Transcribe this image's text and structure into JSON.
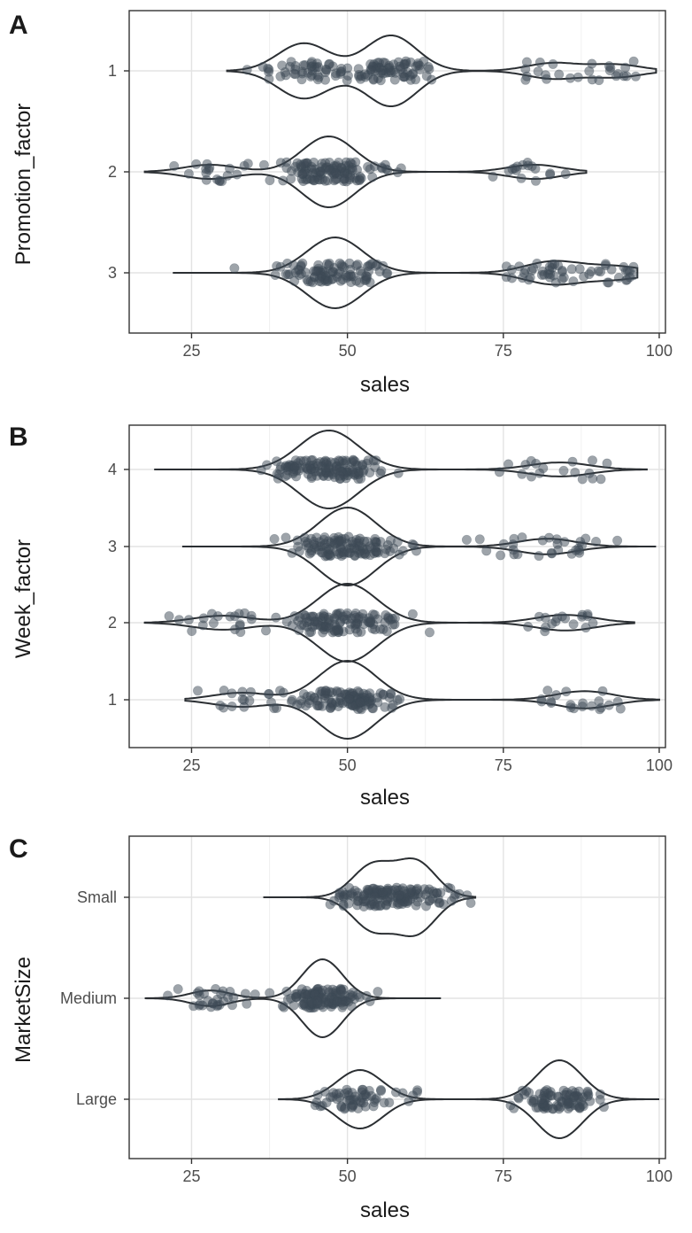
{
  "chart_data": [
    {
      "panel": "A",
      "type": "violin",
      "xlabel": "sales",
      "ylabel": "Promotion_factor",
      "xlim": [
        15,
        101
      ],
      "xticks": [
        25,
        50,
        75,
        100
      ],
      "categories": [
        "1",
        "2",
        "3"
      ],
      "grid": true,
      "point_color": "#3d4a56",
      "outline_color": "#2b2f33",
      "series": [
        {
          "category": "1",
          "min": 30.7,
          "max": 99.5,
          "modes": [
            [
              43,
              0.78
            ],
            [
              57,
              1.0
            ],
            [
              83,
              0.22
            ],
            [
              93,
              0.18
            ]
          ]
        },
        {
          "category": "2",
          "min": 17.5,
          "max": 88.3,
          "modes": [
            [
              28,
              0.2
            ],
            [
              47,
              1.0
            ],
            [
              80,
              0.2
            ]
          ]
        },
        {
          "category": "3",
          "min": 22.0,
          "max": 96.5,
          "modes": [
            [
              48,
              1.0
            ],
            [
              83,
              0.32
            ],
            [
              93,
              0.18
            ]
          ]
        }
      ]
    },
    {
      "panel": "B",
      "type": "violin",
      "xlabel": "sales",
      "ylabel": "Week_factor",
      "xlim": [
        15,
        101
      ],
      "xticks": [
        25,
        50,
        75,
        100
      ],
      "categories": [
        "1",
        "2",
        "3",
        "4"
      ],
      "grid": true,
      "point_color": "#3d4a56",
      "outline_color": "#2b2f33",
      "series": [
        {
          "category": "1",
          "min": 24.0,
          "max": 100.0,
          "modes": [
            [
              50,
              1.0
            ],
            [
              33,
              0.18
            ],
            [
              88,
              0.22
            ]
          ]
        },
        {
          "category": "2",
          "min": 17.5,
          "max": 96.0,
          "modes": [
            [
              50,
              1.0
            ],
            [
              30,
              0.18
            ],
            [
              85,
              0.2
            ]
          ]
        },
        {
          "category": "3",
          "min": 23.5,
          "max": 99.5,
          "modes": [
            [
              50,
              1.0
            ],
            [
              82,
              0.2
            ]
          ]
        },
        {
          "category": "4",
          "min": 19.0,
          "max": 98.0,
          "modes": [
            [
              47,
              1.0
            ],
            [
              84,
              0.18
            ]
          ]
        }
      ]
    },
    {
      "panel": "C",
      "type": "violin",
      "xlabel": "sales",
      "ylabel": "MarketSize",
      "xlim": [
        15,
        101
      ],
      "xticks": [
        25,
        50,
        75,
        100
      ],
      "categories": [
        "Small",
        "Medium",
        "Large"
      ],
      "grid": true,
      "point_color": "#3d4a56",
      "outline_color": "#2b2f33",
      "series": [
        {
          "category": "Small",
          "min": 36.5,
          "max": 70.5,
          "modes": [
            [
              54,
              0.9
            ],
            [
              61,
              1.0
            ]
          ]
        },
        {
          "category": "Medium",
          "min": 17.5,
          "max": 65.0,
          "modes": [
            [
              46,
              1.0
            ],
            [
              28,
              0.2
            ]
          ]
        },
        {
          "category": "Large",
          "min": 39.0,
          "max": 100.0,
          "modes": [
            [
              52,
              0.45
            ],
            [
              84,
              0.6
            ]
          ]
        }
      ]
    }
  ]
}
